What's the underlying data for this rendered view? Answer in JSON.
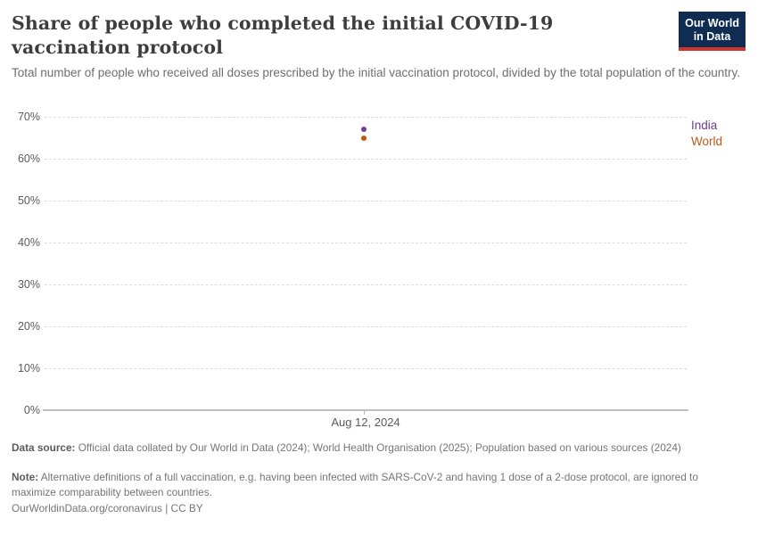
{
  "header": {
    "title": "Share of people who completed the initial COVID-19 vaccination protocol",
    "subtitle": "Total number of people who received all doses prescribed by the initial vaccination protocol, divided by the total population of the country.",
    "logo": {
      "line1": "Our World",
      "line2": "in Data"
    }
  },
  "chart_data": {
    "type": "scatter",
    "title": "Share of people who completed the initial COVID-19 vaccination protocol",
    "x": [
      "Aug 12, 2024"
    ],
    "series": [
      {
        "name": "India",
        "values": [
          67
        ],
        "color": "#6D3E91"
      },
      {
        "name": "World",
        "values": [
          65
        ],
        "color": "#BE5915"
      }
    ],
    "xlabel": "",
    "ylabel": "",
    "ylim": [
      0,
      70
    ],
    "yticks": [
      0,
      10,
      20,
      30,
      40,
      50,
      60,
      70
    ],
    "ytick_suffix": "%",
    "x_axis_tick_label": "Aug 12, 2024",
    "grid": true,
    "legend": [
      "India",
      "World"
    ],
    "legend_position": "right"
  },
  "footer": {
    "data_source_label": "Data source:",
    "data_source_text": "Official data collated by Our World in Data (2024); World Health Organisation (2025); Population based on various sources (2024)",
    "note_label": "Note:",
    "note_text": "Alternative definitions of a full vaccination, e.g. having been infected with SARS-CoV-2 and having 1 dose of a 2-dose protocol, are ignored to maximize comparability between countries.",
    "attribution": "OurWorldinData.org/coronavirus | CC BY"
  },
  "colors": {
    "india": "#6D3E91",
    "world": "#BE5915",
    "gridline": "#dcdcdc",
    "axis_line": "#c0c0c0",
    "logo_background": "#0f2d52",
    "logo_stripe": "#d0342c"
  }
}
